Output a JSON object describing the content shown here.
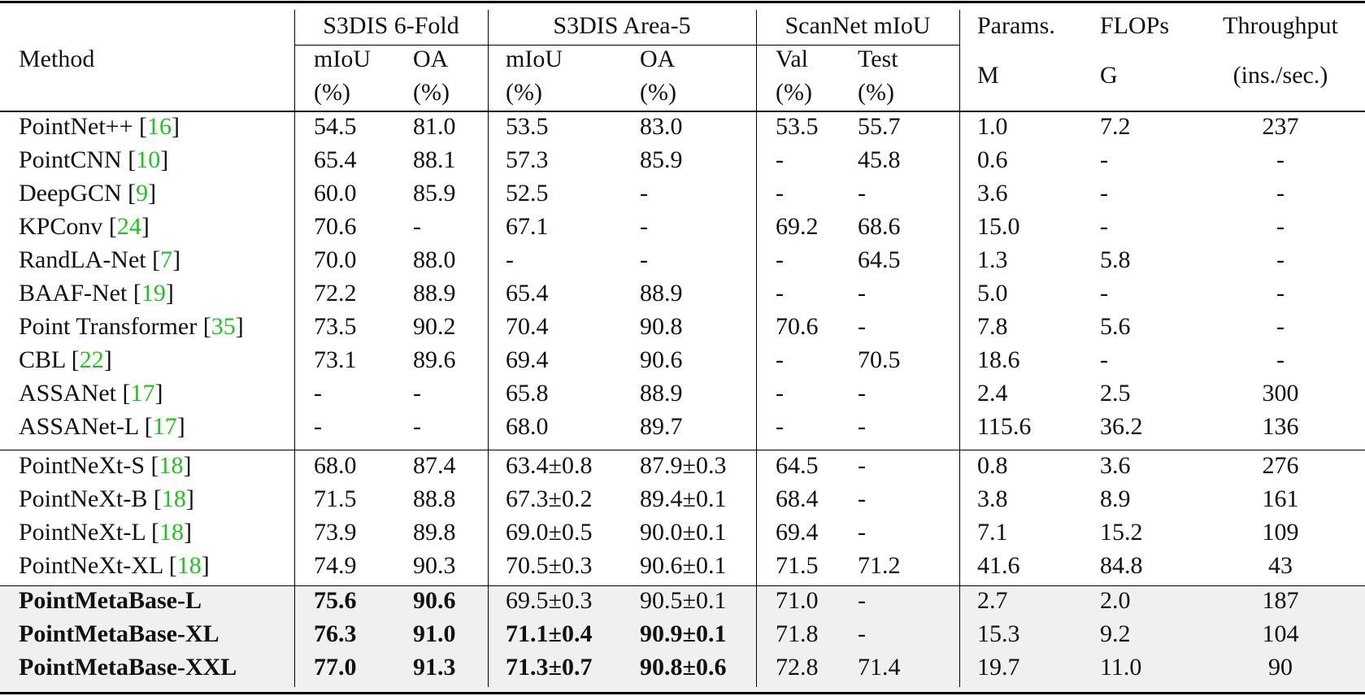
{
  "header": {
    "method": "Method",
    "groups": [
      "S3DIS 6-Fold",
      "S3DIS Area-5",
      "ScanNet mIoU",
      "Params.",
      "FLOPs",
      "Throughput"
    ],
    "sub1": [
      "mIoU",
      "OA",
      "mIoU",
      "OA",
      "Val",
      "Test"
    ],
    "sub2": [
      "(%)",
      "(%)",
      "(%)",
      "(%)",
      "(%)",
      "(%)"
    ],
    "units": [
      "M",
      "G",
      "(ins./sec.)"
    ]
  },
  "rows": [
    {
      "method": "PointNet++ ",
      "ref": "16",
      "bold": false,
      "values": [
        "54.5",
        "81.0",
        "53.5",
        "83.0",
        "53.5",
        "55.7",
        "1.0",
        "7.2",
        "237"
      ]
    },
    {
      "method": "PointCNN ",
      "ref": "10",
      "bold": false,
      "values": [
        "65.4",
        "88.1",
        "57.3",
        "85.9",
        "-",
        "45.8",
        "0.6",
        "-",
        "-"
      ]
    },
    {
      "method": "DeepGCN ",
      "ref": "9",
      "bold": false,
      "values": [
        "60.0",
        "85.9",
        "52.5",
        "-",
        "-",
        "-",
        "3.6",
        "-",
        "-"
      ]
    },
    {
      "method": "KPConv ",
      "ref": "24",
      "bold": false,
      "values": [
        "70.6",
        "-",
        "67.1",
        "-",
        "69.2",
        "68.6",
        "15.0",
        "-",
        "-"
      ]
    },
    {
      "method": "RandLA-Net ",
      "ref": "7",
      "bold": false,
      "values": [
        "70.0",
        "88.0",
        "-",
        "-",
        "-",
        "64.5",
        "1.3",
        "5.8",
        "-"
      ]
    },
    {
      "method": "BAAF-Net ",
      "ref": "19",
      "bold": false,
      "values": [
        "72.2",
        "88.9",
        "65.4",
        "88.9",
        "-",
        "-",
        "5.0",
        "-",
        "-"
      ]
    },
    {
      "method": "Point Transformer ",
      "ref": "35",
      "bold": false,
      "values": [
        "73.5",
        "90.2",
        "70.4",
        "90.8",
        "70.6",
        "-",
        "7.8",
        "5.6",
        "-"
      ]
    },
    {
      "method": "CBL ",
      "ref": "22",
      "bold": false,
      "values": [
        "73.1",
        "89.6",
        "69.4",
        "90.6",
        "-",
        "70.5",
        "18.6",
        "-",
        "-"
      ]
    },
    {
      "method": "ASSANet ",
      "ref": "17",
      "bold": false,
      "values": [
        "-",
        "-",
        "65.8",
        "88.9",
        "-",
        "-",
        "2.4",
        "2.5",
        "300"
      ]
    },
    {
      "method": "ASSANet-L ",
      "ref": "17",
      "bold": false,
      "values": [
        "-",
        "-",
        "68.0",
        "89.7",
        "-",
        "-",
        "115.6",
        "36.2",
        "136"
      ]
    },
    {
      "method": "PointNeXt-S ",
      "ref": "18",
      "bold": false,
      "values": [
        "68.0",
        "87.4",
        "63.4±0.8",
        "87.9±0.3",
        "64.5",
        "-",
        "0.8",
        "3.6",
        "276"
      ]
    },
    {
      "method": "PointNeXt-B ",
      "ref": "18",
      "bold": false,
      "values": [
        "71.5",
        "88.8",
        "67.3±0.2",
        "89.4±0.1",
        "68.4",
        "-",
        "3.8",
        "8.9",
        "161"
      ]
    },
    {
      "method": "PointNeXt-L ",
      "ref": "18",
      "bold": false,
      "values": [
        "73.9",
        "89.8",
        "69.0±0.5",
        "90.0±0.1",
        "69.4",
        "-",
        "7.1",
        "15.2",
        "109"
      ]
    },
    {
      "method": "PointNeXt-XL ",
      "ref": "18",
      "bold": false,
      "values": [
        "74.9",
        "90.3",
        "70.5±0.3",
        "90.6±0.1",
        "71.5",
        "71.2",
        "41.6",
        "84.8",
        "43"
      ]
    },
    {
      "method": "PointMetaBase-L",
      "ref": "",
      "bold": true,
      "boldCols": [
        0,
        1
      ],
      "values": [
        "75.6",
        "90.6",
        "69.5±0.3",
        "90.5±0.1",
        "71.0",
        "-",
        "2.7",
        "2.0",
        "187"
      ]
    },
    {
      "method": "PointMetaBase-XL",
      "ref": "",
      "bold": true,
      "boldCols": [
        0,
        1,
        2,
        3
      ],
      "values": [
        "76.3",
        "91.0",
        "71.1±0.4",
        "90.9±0.1",
        "71.8",
        "-",
        "15.3",
        "9.2",
        "104"
      ]
    },
    {
      "method": "PointMetaBase-XXL",
      "ref": "",
      "bold": true,
      "boldCols": [
        0,
        1,
        2,
        3
      ],
      "values": [
        "77.0",
        "91.3",
        "71.3±0.7",
        "90.8±0.6",
        "72.8",
        "71.4",
        "19.7",
        "11.0",
        "90"
      ]
    }
  ]
}
